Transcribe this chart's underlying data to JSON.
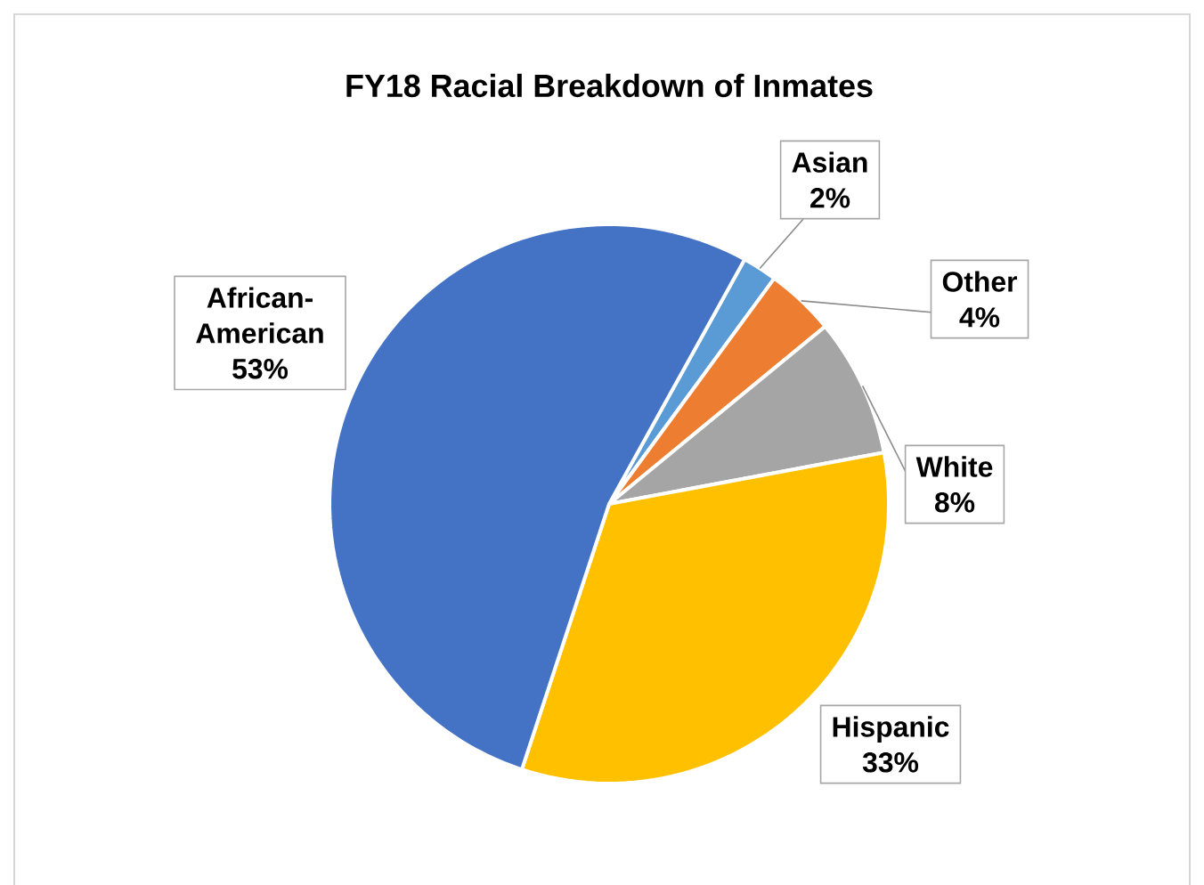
{
  "chart_data": {
    "type": "pie",
    "title": "FY18 Racial Breakdown of Inmates",
    "categories": [
      "Asian",
      "Other",
      "White",
      "Hispanic",
      "African-American"
    ],
    "values": [
      2,
      4,
      8,
      33,
      53
    ],
    "value_labels": [
      "2%",
      "4%",
      "8%",
      "33%",
      "53%"
    ],
    "colors": [
      "#5b9bd5",
      "#ed7d31",
      "#a5a5a5",
      "#ffc000",
      "#4472c4"
    ]
  }
}
